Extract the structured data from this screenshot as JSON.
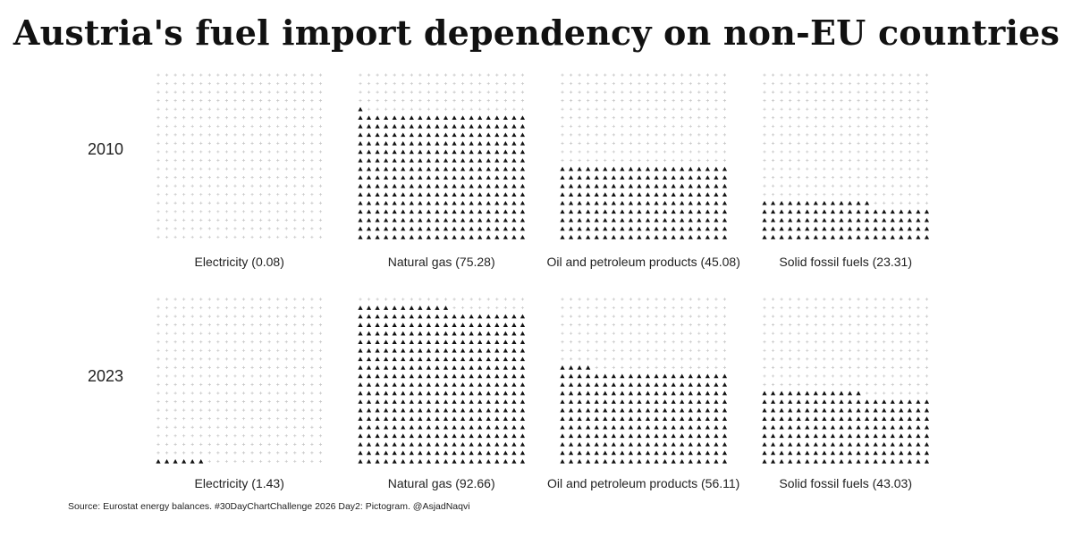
{
  "title": "Austria's fuel import dependency on non-EU countries",
  "source": "Source: Eurostat energy balances. #30DayChartChallenge 2026 Day2: Pictogram. @AsjadNaqvi",
  "chart_data": {
    "type": "pictogram",
    "description_unit": "percent of imports from non-EU countries; one filled triangle per 0.25% (20x20 grid = 400 symbols)",
    "rows": [
      "2010",
      "2023"
    ],
    "categories": [
      "Electricity",
      "Natural gas",
      "Oil and petroleum products",
      "Solid fossil fuels"
    ],
    "grid": {
      "columns": 20,
      "rows": 20
    },
    "series": [
      {
        "name": "2010",
        "values": [
          0.08,
          75.28,
          45.08,
          23.31
        ],
        "labels": [
          "Electricity (0.08)",
          "Natural gas (75.28)",
          "Oil and petroleum products (45.08)",
          "Solid fossil fuels (23.31)"
        ]
      },
      {
        "name": "2023",
        "values": [
          1.43,
          92.66,
          56.11,
          43.03
        ],
        "labels": [
          "Electricity (1.43)",
          "Natural gas (92.66)",
          "Oil and petroleum products (56.11)",
          "Solid fossil fuels (43.03)"
        ]
      }
    ],
    "colors": {
      "filled": "#111111",
      "empty": "#c4c4c4"
    },
    "filled_symbol": "triangle",
    "empty_symbol": "plus"
  }
}
